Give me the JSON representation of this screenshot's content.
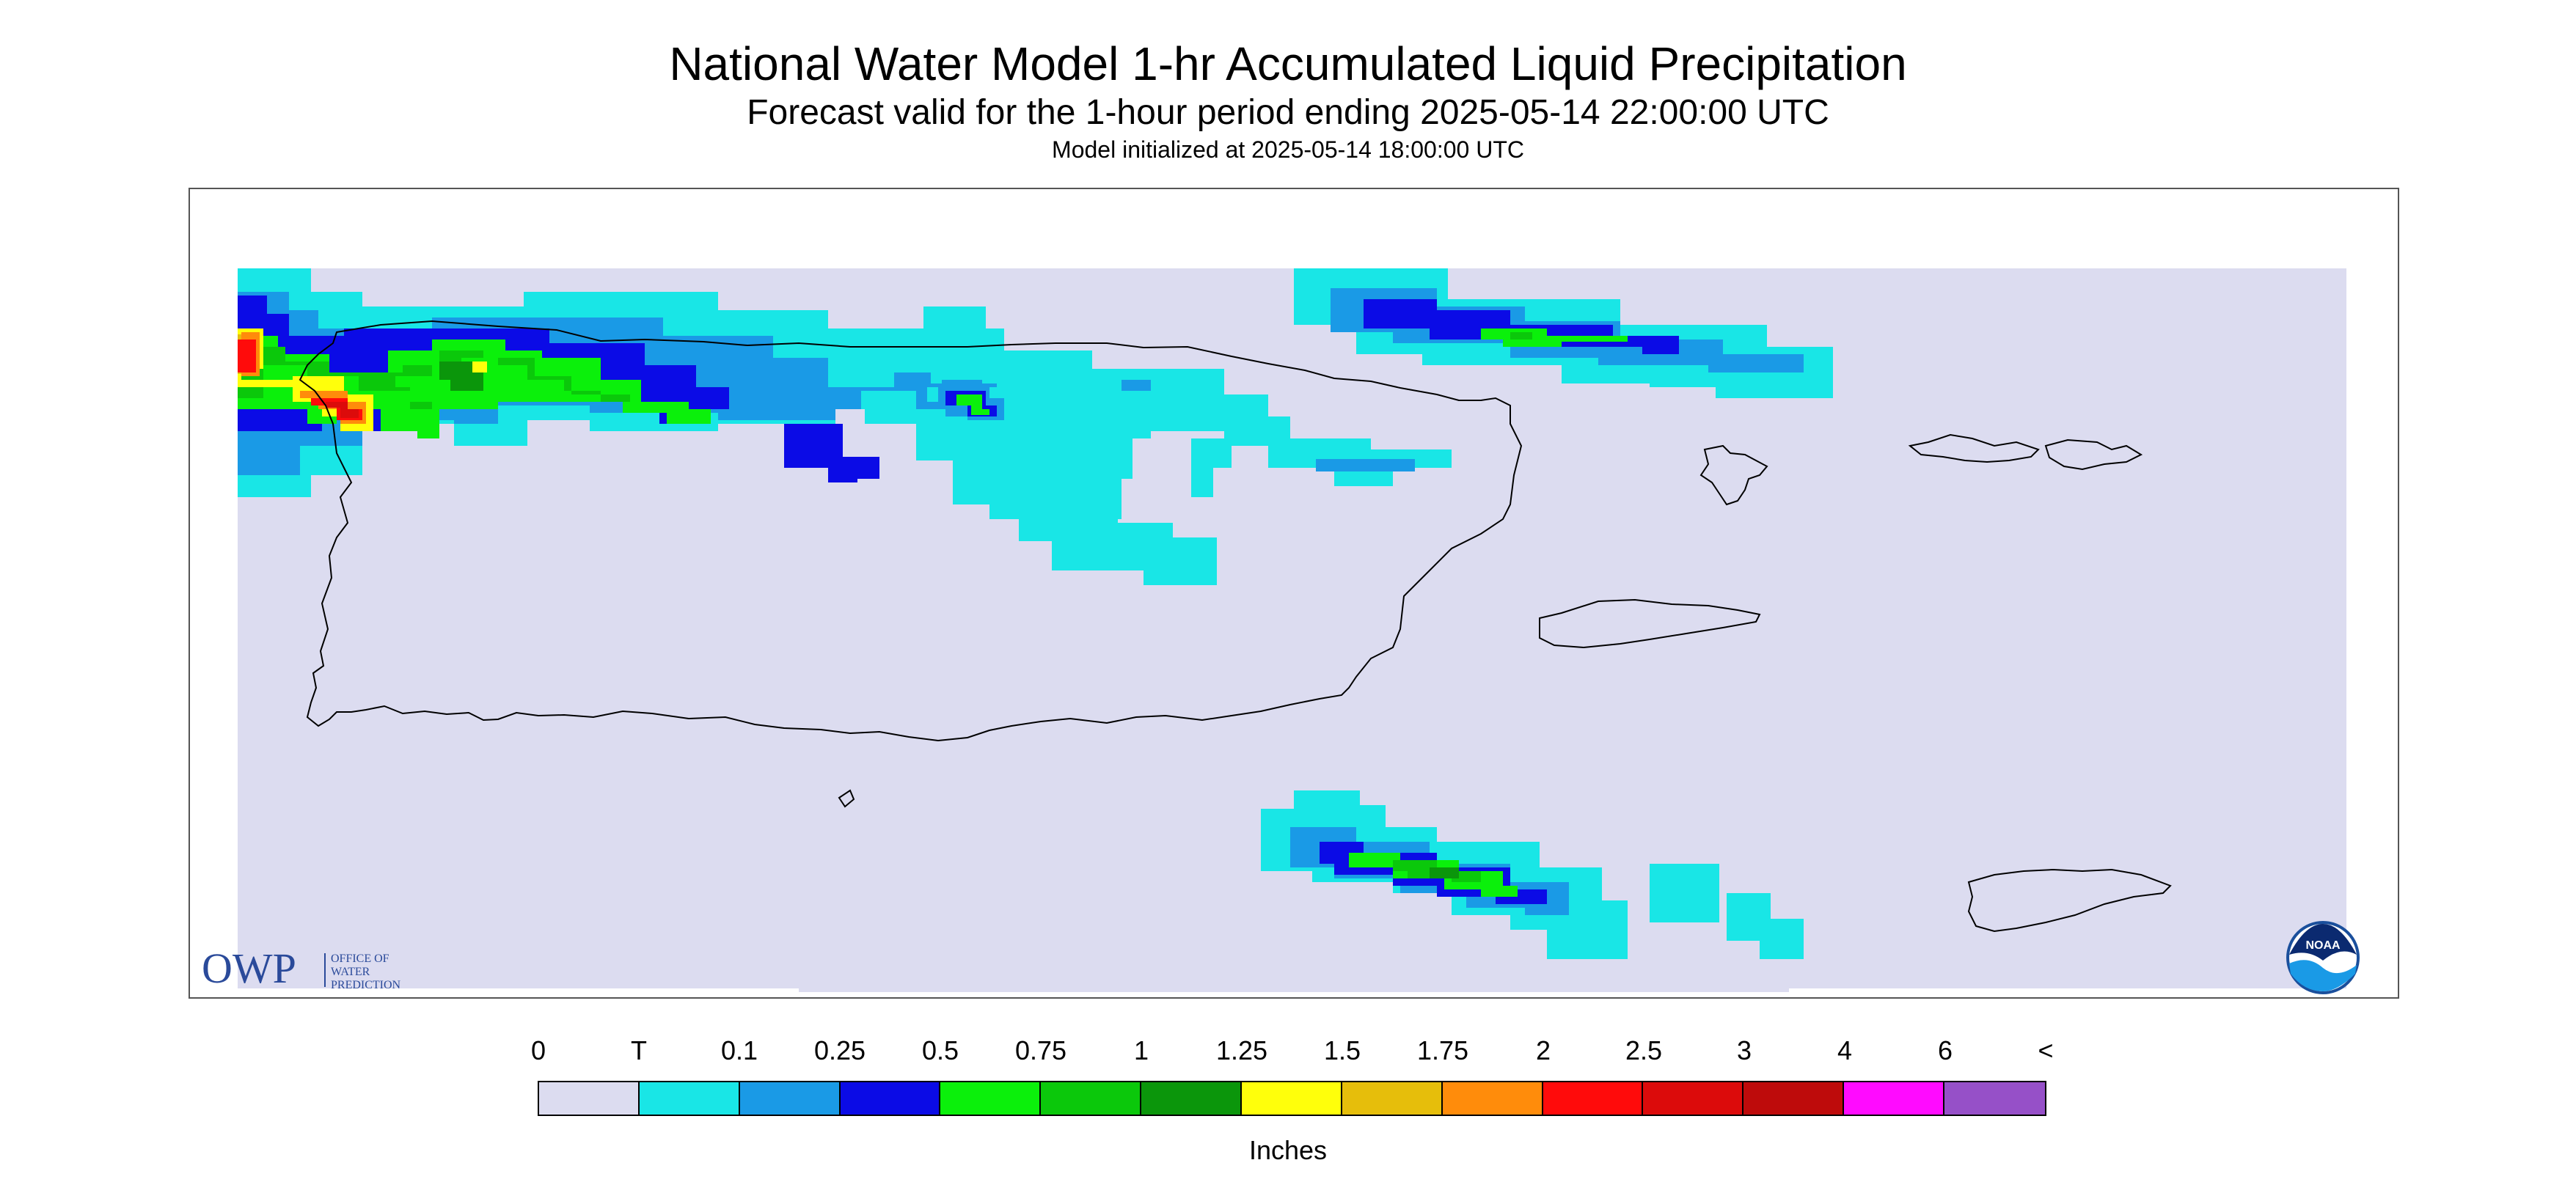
{
  "header": {
    "title": "National Water Model 1-hr Accumulated Liquid Precipitation",
    "subtitle": "Forecast valid for the 1-hour period ending 2025-05-14 22:00:00 UTC",
    "init_line": "Model initialized at 2025-05-14 18:00:00 UTC"
  },
  "map": {
    "background_color": "#dcdcf0",
    "coastline_color": "#000000",
    "owp_logo": {
      "mark": "OWP",
      "line1": "OFFICE OF",
      "line2": "WATER",
      "line3": "PREDICTION",
      "color": "#2a4a9a"
    },
    "noaa_logo": {
      "text": "NOAA",
      "color": "#1a4f9c"
    }
  },
  "legend": {
    "tick_labels": [
      "0",
      "T",
      "0.1",
      "0.25",
      "0.5",
      "0.75",
      "1",
      "1.25",
      "1.5",
      "1.75",
      "2",
      "2.5",
      "3",
      "4",
      "6",
      "<"
    ],
    "colors": [
      "#dcdcf0",
      "#19e6e6",
      "#1a9ae6",
      "#0b0be6",
      "#0bf00b",
      "#0bc80b",
      "#0b960b",
      "#ffff0b",
      "#e6be0b",
      "#ff8c0b",
      "#ff0b0b",
      "#dc0b0b",
      "#be0b0b",
      "#ff0bff",
      "#9650c8"
    ],
    "units": "Inches"
  }
}
